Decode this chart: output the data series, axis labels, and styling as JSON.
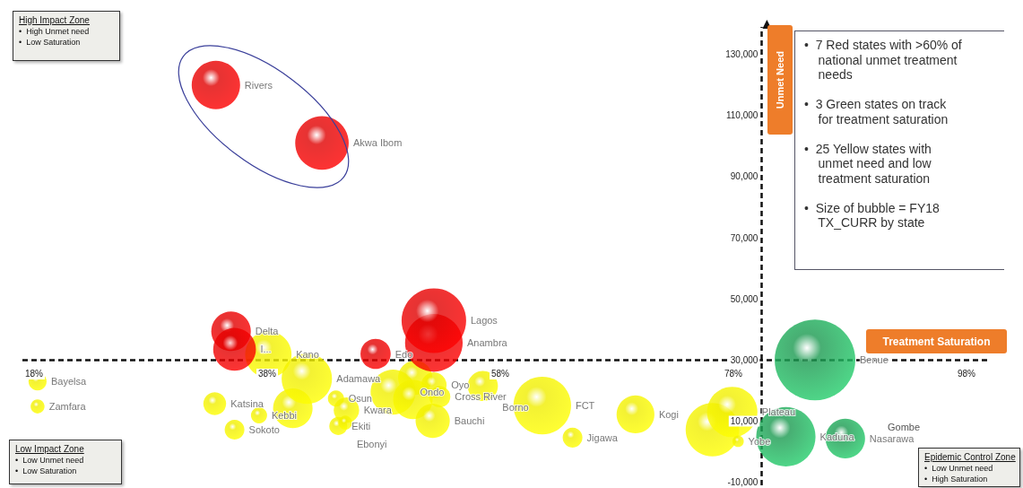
{
  "chart_data": {
    "type": "bubble",
    "xlabel": "Treatment Saturation",
    "ylabel": "Unmet Need",
    "xlim": [
      17,
      100
    ],
    "ylim": [
      -11000,
      139000
    ],
    "xticks": [
      {
        "value": 18,
        "label": "18%"
      },
      {
        "value": 38,
        "label": "38%"
      },
      {
        "value": 58,
        "label": "58%"
      },
      {
        "value": 78,
        "label": "78%"
      },
      {
        "value": 98,
        "label": "98%"
      }
    ],
    "yticks": [
      {
        "value": -10000,
        "label": "-10,000"
      },
      {
        "value": 10000,
        "label": "10,000"
      },
      {
        "value": 30000,
        "label": "30,000"
      },
      {
        "value": 50000,
        "label": "50,000"
      },
      {
        "value": 70000,
        "label": "70,000"
      },
      {
        "value": 90000,
        "label": "90,000"
      },
      {
        "value": 110000,
        "label": "110,000"
      },
      {
        "value": 130000,
        "label": "130,000"
      }
    ],
    "grid": false,
    "ref_lines": [
      {
        "axis": "y",
        "value": 30000,
        "color": "#111111",
        "line_style": "dashed"
      },
      {
        "axis": "x",
        "value": 80.4,
        "color": "#111111",
        "line_style": "dashed"
      }
    ],
    "series": [
      {
        "color": "#f0ee00",
        "x": [
          18.3,
          18.3,
          33.5,
          35.2,
          37.3,
          40.2,
          38.1,
          41.4,
          43.9,
          44.8,
          44.1,
          44.7,
          48.8,
          50.7,
          50.5,
          52.3,
          52.8,
          56.5,
          52.2,
          61.6,
          64.2,
          69.6,
          76.2,
          77.9,
          78.4
        ],
        "values": [
          23000,
          14800,
          15700,
          7200,
          11900,
          14200,
          31800,
          23900,
          17400,
          13600,
          8400,
          9500,
          19500,
          24200,
          17100,
          21800,
          18000,
          21500,
          10100,
          15100,
          4600,
          12200,
          7200,
          13000,
          3400
        ],
        "sizes": [
          0.05,
          0.03,
          0.08,
          0.06,
          0.04,
          0.24,
          0.33,
          0.39,
          0.04,
          0.1,
          0.05,
          0.03,
          0.31,
          0.18,
          0.24,
          0.1,
          0.07,
          0.14,
          0.18,
          0.51,
          0.06,
          0.22,
          0.44,
          0.39,
          0.02
        ],
        "value_labels": [
          "Bayelsa",
          "Zamfara",
          "Katsina",
          "Sokoto",
          "Kebbi",
          null,
          "Kano",
          "Adamawa",
          "Osun",
          "Kwara",
          "Ekiti",
          "Ebonyi",
          "Ondo",
          null,
          null,
          "Oyo",
          "Cross River",
          "Borno",
          "Bauchi",
          "FCT",
          "Jigawa",
          "Kogi",
          null,
          "Plateau",
          "Yobe"
        ]
      },
      {
        "color": "#e00000",
        "x": [
          33.6,
          42.7,
          34.9,
          35.2,
          47.3,
          52.3,
          52.3
        ],
        "values": [
          120000,
          101000,
          39400,
          33500,
          32000,
          35600,
          42900
        ],
        "sizes": [
          0.36,
          0.44,
          0.24,
          0.28,
          0.14,
          0.51,
          0.64
        ],
        "value_labels": [
          "Rivers",
          "Akwa Ibom",
          "Delta",
          "I...",
          "Edo",
          "Anambra",
          "Lagos"
        ]
      },
      {
        "color": "#1a9a50",
        "x": [
          85.0,
          82.5,
          87.6
        ],
        "values": [
          30000,
          4900,
          4300
        ],
        "sizes": [
          1,
          0.54,
          0.24
        ],
        "value_labels": [
          "Benue",
          "Kaduna",
          "Nasarawa"
        ]
      }
    ],
    "annotations": [
      "High Impact Zone\n•  High Unmet need\n•  Low Saturation",
      "Low Impact Zone\n•  Low Unmet need\n•  Low Saturation",
      "Epidemic Control Zone\n•  Low Unmet need\n•  High Saturation",
      "•  7 Red states with >60% of\n    national unmet treatment\n    needs\n\n•  3 Green states on track\n    for treatment saturation\n\n•  25 Yellow states with\n    unmet need and low\n    treatment saturation\n\n•  Size of bubble = FY18\n    TX_CURR by state",
      "Gombe"
    ]
  }
}
